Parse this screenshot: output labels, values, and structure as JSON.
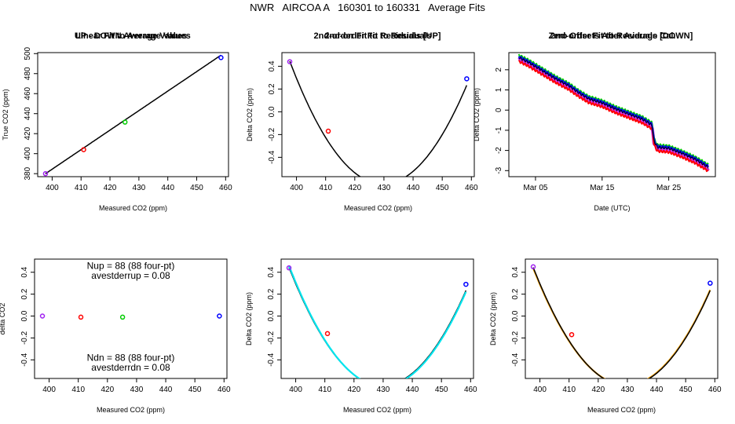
{
  "page": {
    "title": "NWR   AIRCOA A   160301 to 160331   Average Fits"
  },
  "colors": {
    "purple": "#a020f0",
    "red": "#ff0000",
    "green": "#00cc00",
    "blue": "#0000ff",
    "black": "#000000",
    "cyan": "#00e5ee",
    "orange": "#ffa500",
    "magenta": "#cc33ff"
  },
  "chart_data": [
    {
      "type": "line",
      "title": "Linear Fit to Average Values",
      "xlabel": "Measured CO2 (ppm)",
      "ylabel": "True CO2 (ppm)",
      "xlim": [
        395,
        461
      ],
      "ylim": [
        377,
        501
      ],
      "xticks": [
        400,
        410,
        420,
        430,
        440,
        450,
        460
      ],
      "yticks": [
        380,
        400,
        420,
        440,
        460,
        480,
        500
      ],
      "points": [
        {
          "x": 397.7,
          "y": 380.0,
          "color": "purple"
        },
        {
          "x": 410.9,
          "y": 404.0,
          "color": "red"
        },
        {
          "x": 425.2,
          "y": 431.5,
          "color": "green"
        },
        {
          "x": 458.4,
          "y": 496.0,
          "color": "blue"
        }
      ],
      "fits": [
        {
          "kind": "linear",
          "color": "black",
          "slope": 1.9512,
          "intercept": -396.0
        }
      ]
    },
    {
      "type": "line",
      "title": "2nd-order Fit to Residuals",
      "xlabel": "Measured CO2 (ppm)",
      "ylabel": "Delta CO2 (ppm)",
      "xlim": [
        395,
        461
      ],
      "ylim": [
        -0.57,
        0.52
      ],
      "xticks": [
        400,
        410,
        420,
        430,
        440,
        450,
        460
      ],
      "yticks": [
        -0.4,
        -0.2,
        0.0,
        0.2,
        0.4
      ],
      "points": [
        {
          "x": 397.7,
          "y": 0.44,
          "color": "purple"
        },
        {
          "x": 410.9,
          "y": -0.17,
          "color": "red"
        },
        {
          "x": 458.4,
          "y": 0.29,
          "color": "blue"
        }
      ],
      "fits": [
        {
          "kind": "quadratic",
          "color": "black",
          "vertex_x": 429.7,
          "vertex_y": -0.635,
          "a": 0.001054
        }
      ]
    },
    {
      "type": "line",
      "title": "Zero Offsets After Average Cal.",
      "xlabel": "Date (UTC)",
      "ylabel": "Delta CO2 (ppm)",
      "xlim": [
        0.0,
        31.0
      ],
      "ylim": [
        -3.3,
        2.85
      ],
      "xticks": [
        4,
        14,
        24
      ],
      "xticklabels": [
        "Mar 05",
        "Mar 15",
        "Mar 25"
      ],
      "yticks": [
        -3,
        -2,
        -1,
        0,
        1,
        2
      ],
      "series": [
        {
          "color": "magenta",
          "offset": -0.1,
          "width": 4
        },
        {
          "color": "red",
          "offset": -0.18,
          "width": 2
        },
        {
          "color": "green",
          "offset": 0.12,
          "width": 2
        },
        {
          "color": "blue",
          "offset": 0.05,
          "width": 2
        },
        {
          "color": "black",
          "offset": 0.0,
          "width": 1
        }
      ],
      "trend": [
        {
          "x": 1.5,
          "y": 2.6
        },
        {
          "x": 3.0,
          "y": 2.35
        },
        {
          "x": 5.0,
          "y": 1.95
        },
        {
          "x": 7.0,
          "y": 1.55
        },
        {
          "x": 9.0,
          "y": 1.2
        },
        {
          "x": 10.5,
          "y": 0.85
        },
        {
          "x": 12.0,
          "y": 0.55
        },
        {
          "x": 14.0,
          "y": 0.35
        },
        {
          "x": 16.0,
          "y": 0.05
        },
        {
          "x": 18.0,
          "y": -0.2
        },
        {
          "x": 20.0,
          "y": -0.45
        },
        {
          "x": 21.5,
          "y": -0.75
        },
        {
          "x": 21.8,
          "y": -1.55
        },
        {
          "x": 22.3,
          "y": -1.85
        },
        {
          "x": 24.0,
          "y": -1.9
        },
        {
          "x": 26.0,
          "y": -2.15
        },
        {
          "x": 28.0,
          "y": -2.45
        },
        {
          "x": 30.0,
          "y": -2.85
        }
      ]
    },
    {
      "type": "scatter",
      "title": "UP - DOWN Average Values",
      "xlabel": "Measured CO2 (ppm)",
      "ylabel": "delta CO2",
      "xlim": [
        395,
        461
      ],
      "ylim": [
        -0.57,
        0.52
      ],
      "xticks": [
        400,
        410,
        420,
        430,
        440,
        450,
        460
      ],
      "yticks": [
        -0.4,
        -0.2,
        0.0,
        0.2,
        0.4
      ],
      "points": [
        {
          "x": 397.7,
          "y": 0.0,
          "color": "purple"
        },
        {
          "x": 410.9,
          "y": -0.01,
          "color": "red"
        },
        {
          "x": 425.2,
          "y": -0.01,
          "color": "green"
        },
        {
          "x": 458.4,
          "y": 0.0,
          "color": "blue"
        }
      ],
      "annotations": [
        {
          "text": "Nup = 88 (88 four-pt)",
          "x": 428,
          "y": 0.46
        },
        {
          "text": "avestderrup =  0.08",
          "x": 428,
          "y": 0.37
        },
        {
          "text": "Ndn = 88 (88 four-pt)",
          "x": 428,
          "y": -0.38
        },
        {
          "text": "avestderrdn =  0.08",
          "x": 428,
          "y": -0.47
        }
      ]
    },
    {
      "type": "line",
      "title": "2nd-order Fit to Residuals [UP]",
      "xlabel": "Measured CO2 (ppm)",
      "ylabel": "Delta CO2 (ppm)",
      "xlim": [
        395,
        461
      ],
      "ylim": [
        -0.57,
        0.52
      ],
      "xticks": [
        400,
        410,
        420,
        430,
        440,
        450,
        460
      ],
      "yticks": [
        -0.4,
        -0.2,
        0.0,
        0.2,
        0.4
      ],
      "points": [
        {
          "x": 397.7,
          "y": 0.44,
          "color": "purple"
        },
        {
          "x": 410.9,
          "y": -0.16,
          "color": "red"
        },
        {
          "x": 458.4,
          "y": 0.29,
          "color": "blue"
        }
      ],
      "fits": [
        {
          "kind": "quadratic",
          "color": "black",
          "vertex_x": 429.7,
          "vertex_y": -0.635,
          "a": 0.001054
        },
        {
          "kind": "quadratic",
          "color": "cyan",
          "vertex_x": 429.9,
          "vertex_y": -0.64,
          "a": 0.00106
        }
      ]
    },
    {
      "type": "line",
      "title": "2nd-order Fit to Residuals [DOWN]",
      "xlabel": "Measured CO2 (ppm)",
      "ylabel": "Delta CO2 (ppm)",
      "xlim": [
        395,
        461
      ],
      "ylim": [
        -0.57,
        0.52
      ],
      "xticks": [
        400,
        410,
        420,
        430,
        440,
        450,
        460
      ],
      "yticks": [
        -0.4,
        -0.2,
        0.0,
        0.2,
        0.4
      ],
      "points": [
        {
          "x": 397.7,
          "y": 0.45,
          "color": "purple"
        },
        {
          "x": 410.9,
          "y": -0.17,
          "color": "red"
        },
        {
          "x": 458.4,
          "y": 0.3,
          "color": "blue"
        }
      ],
      "fits": [
        {
          "kind": "quadratic",
          "color": "orange",
          "vertex_x": 429.6,
          "vertex_y": -0.632,
          "a": 0.00105
        },
        {
          "kind": "quadratic",
          "color": "black",
          "vertex_x": 429.7,
          "vertex_y": -0.635,
          "a": 0.001054
        }
      ]
    }
  ]
}
